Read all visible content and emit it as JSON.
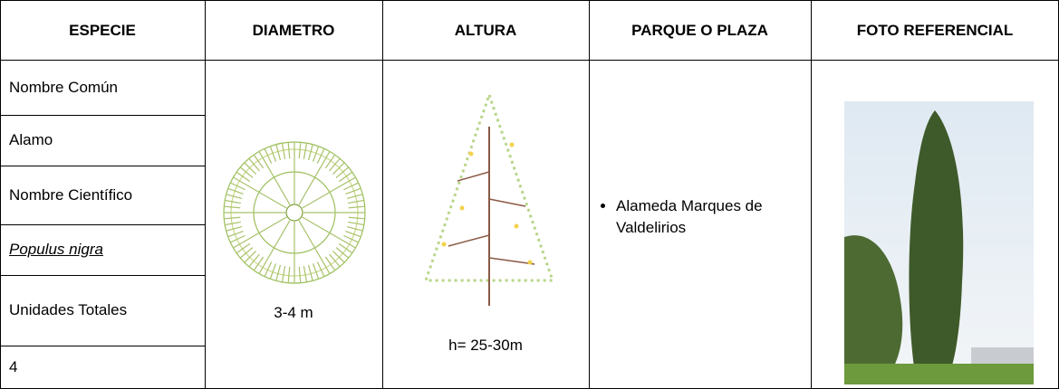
{
  "table": {
    "headers": [
      "ESPECIE",
      "DIAMETRO",
      "ALTURA",
      "PARQUE O PLAZA",
      "FOTO REFERENCIAL"
    ],
    "especie": [
      "Nombre Común",
      "Alamo",
      "Nombre Científico",
      "Populus nigra",
      "Unidades Totales",
      "4"
    ],
    "diametro": "3-4 m",
    "altura": "h= 25-30m",
    "parque": [
      "Alameda Marques de Valdelirios"
    ]
  }
}
